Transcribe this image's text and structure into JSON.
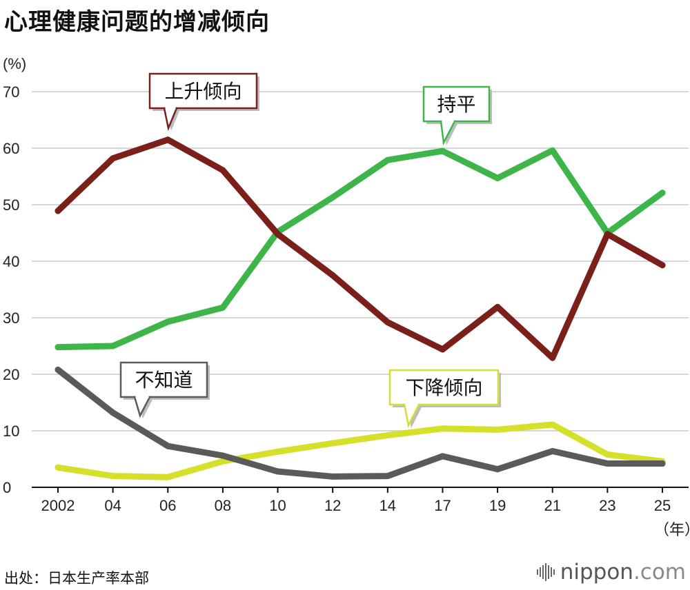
{
  "title": "心理健康问题的增减倾向",
  "source": "出处：日本生产率本部",
  "brand": {
    "name": "nippon",
    "suffix": ".com"
  },
  "chart_data": {
    "type": "line",
    "title": "心理健康问题的增减倾向",
    "ylabel": "(%)",
    "xlabel": "（年）",
    "ylim": [
      0,
      70
    ],
    "yticks": [
      0,
      10,
      20,
      30,
      40,
      50,
      60,
      70
    ],
    "grid": true,
    "categories": [
      "2002",
      "04",
      "06",
      "08",
      "10",
      "12",
      "14",
      "17",
      "19",
      "21",
      "23",
      "25"
    ],
    "series": [
      {
        "name": "上升倾向",
        "color": "#7a1f1a",
        "values": [
          48.9,
          58.2,
          61.5,
          56.1,
          44.8,
          37.5,
          29.2,
          24.4,
          31.9,
          22.9,
          44.8,
          39.3
        ]
      },
      {
        "name": "持平",
        "color": "#3db549",
        "values": [
          24.8,
          25.0,
          29.3,
          31.8,
          45.2,
          51.3,
          57.9,
          59.5,
          54.7,
          59.6,
          45.0,
          52.1
        ]
      },
      {
        "name": "不知道",
        "color": "#5a5a5a",
        "values": [
          20.8,
          13.2,
          7.3,
          5.6,
          2.8,
          1.9,
          2.0,
          5.5,
          3.2,
          6.4,
          4.2,
          4.2
        ]
      },
      {
        "name": "下降倾向",
        "color": "#d6e02a",
        "values": [
          3.5,
          2.0,
          1.8,
          4.6,
          6.3,
          7.8,
          9.2,
          10.4,
          10.2,
          11.1,
          5.8,
          4.6
        ]
      }
    ],
    "annotations": [
      {
        "label": "上升倾向",
        "series": 0
      },
      {
        "label": "持平",
        "series": 1
      },
      {
        "label": "不知道",
        "series": 2
      },
      {
        "label": "下降倾向",
        "series": 3
      }
    ]
  }
}
